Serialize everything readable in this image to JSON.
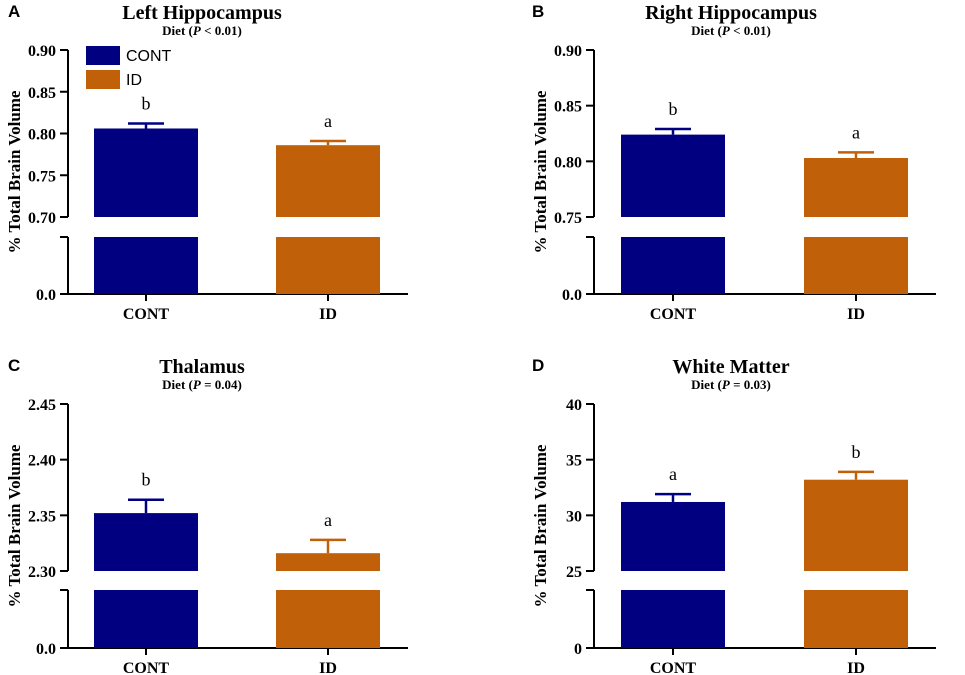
{
  "legend": [
    {
      "label": "CONT",
      "color": "#000080"
    },
    {
      "label": "ID",
      "color": "#C0610A"
    }
  ],
  "chart_data": [
    {
      "panel": "A",
      "type": "bar",
      "title": "Left Hippocampus",
      "subtitle": {
        "prefix": "Diet (",
        "italic": "P",
        "suffix": " < 0.01)"
      },
      "ylabel": "% Total Brain Volume",
      "categories": [
        "CONT",
        "ID"
      ],
      "values": [
        0.806,
        0.786
      ],
      "errors": [
        0.006,
        0.005
      ],
      "significance": [
        "b",
        "a"
      ],
      "ylim": [
        0.7,
        0.9
      ],
      "yticks": [
        "0.70",
        "0.75",
        "0.80",
        "0.85",
        "0.90"
      ],
      "ytick_values": [
        0.7,
        0.75,
        0.8,
        0.85,
        0.9
      ],
      "axis_break": true,
      "baseline_label": "0.0"
    },
    {
      "panel": "B",
      "type": "bar",
      "title": "Right Hippocampus",
      "subtitle": {
        "prefix": "Diet (",
        "italic": "P",
        "suffix": " < 0.01)"
      },
      "ylabel": "% Total Brain Volume",
      "categories": [
        "CONT",
        "ID"
      ],
      "values": [
        0.824,
        0.803
      ],
      "errors": [
        0.005,
        0.005
      ],
      "significance": [
        "b",
        "a"
      ],
      "ylim": [
        0.75,
        0.9
      ],
      "yticks": [
        "0.75",
        "0.80",
        "0.85",
        "0.90"
      ],
      "ytick_values": [
        0.75,
        0.8,
        0.85,
        0.9
      ],
      "axis_break": true,
      "baseline_label": "0.0"
    },
    {
      "panel": "C",
      "type": "bar",
      "title": "Thalamus",
      "subtitle": {
        "prefix": "Diet (",
        "italic": "P",
        "suffix": " = 0.04)"
      },
      "ylabel": "% Total Brain Volume",
      "categories": [
        "CONT",
        "ID"
      ],
      "values": [
        2.352,
        2.316
      ],
      "errors": [
        0.012,
        0.012
      ],
      "significance": [
        "b",
        "a"
      ],
      "ylim": [
        2.3,
        2.45
      ],
      "yticks": [
        "2.30",
        "2.35",
        "2.40",
        "2.45"
      ],
      "ytick_values": [
        2.3,
        2.35,
        2.4,
        2.45
      ],
      "axis_break": true,
      "baseline_label": "0.0"
    },
    {
      "panel": "D",
      "type": "bar",
      "title": "White Matter",
      "subtitle": {
        "prefix": "Diet (",
        "italic": "P",
        "suffix": " = 0.03)"
      },
      "ylabel": "% Total Brain Volume",
      "categories": [
        "CONT",
        "ID"
      ],
      "values": [
        31.2,
        33.2
      ],
      "errors": [
        0.7,
        0.7
      ],
      "significance": [
        "a",
        "b"
      ],
      "ylim": [
        25,
        40
      ],
      "yticks": [
        "25",
        "30",
        "35",
        "40"
      ],
      "ytick_values": [
        25,
        30,
        35,
        40
      ],
      "axis_break": true,
      "baseline_label": "0"
    }
  ]
}
